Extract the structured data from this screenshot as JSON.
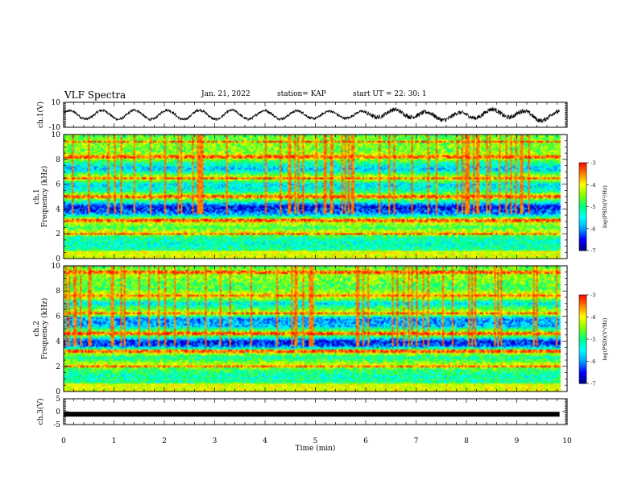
{
  "header": {
    "title": "VLF Spectra",
    "date": "Jan. 21, 2022",
    "station": "station= KAP",
    "start": "start UT =  22: 30: 1"
  },
  "chart_data": [
    {
      "type": "line",
      "panel": "ch1-waveform",
      "ylabel": "ch.1(V)",
      "ylim": [
        -10,
        10
      ],
      "yticks": [
        "10",
        "-10"
      ],
      "xlim": [
        0,
        10
      ],
      "description_values": "oscillating voltage trace, roughly 15 cycles over 0–9.8 min, amplitude ~ ±4 V, becoming noisier after 6 min"
    },
    {
      "type": "heatmap",
      "panel": "ch1-spectrogram",
      "ylabel": "Frequency (kHz)",
      "ylabel_channel": "ch.1",
      "ylim": [
        0,
        10
      ],
      "yticks": [
        "0",
        "2",
        "4",
        "6",
        "8",
        "10"
      ],
      "xlim": [
        0,
        10
      ],
      "data_end_min": 9.85,
      "colorbar": {
        "label": "log(PSD)(V²/Hz)",
        "range": [
          -7,
          -3
        ],
        "ticks": [
          "-3",
          "-4",
          "-5",
          "-6",
          "-7"
        ]
      }
    },
    {
      "type": "heatmap",
      "panel": "ch2-spectrogram",
      "ylabel": "Frequency (kHz)",
      "ylabel_channel": "ch.2",
      "ylim": [
        0,
        10
      ],
      "yticks": [
        "0",
        "2",
        "4",
        "6",
        "8",
        "10"
      ],
      "xlim": [
        0,
        10
      ],
      "data_end_min": 9.85,
      "colorbar": {
        "label": "log(PSD)(V²/Hz)",
        "range": [
          -7,
          -3
        ],
        "ticks": [
          "-3",
          "-4",
          "-5",
          "-6",
          "-7"
        ]
      }
    },
    {
      "type": "line",
      "panel": "ch3-waveform",
      "ylabel": "ch.3(V)",
      "ylim": [
        -5,
        5
      ],
      "yticks": [
        "5",
        "0",
        "-5"
      ],
      "level": -1,
      "xlim": [
        0,
        10
      ],
      "xlabel": "Time (min)",
      "xticks": [
        "0",
        "1",
        "2",
        "3",
        "4",
        "5",
        "6",
        "7",
        "8",
        "9",
        "10"
      ]
    }
  ],
  "colors": {
    "colormap": [
      "#000080",
      "#0000ff",
      "#00a0ff",
      "#00ffff",
      "#00ff80",
      "#80ff00",
      "#ffff00",
      "#ff8000",
      "#ff0000",
      "#ffffff"
    ],
    "trace": "#000000"
  }
}
